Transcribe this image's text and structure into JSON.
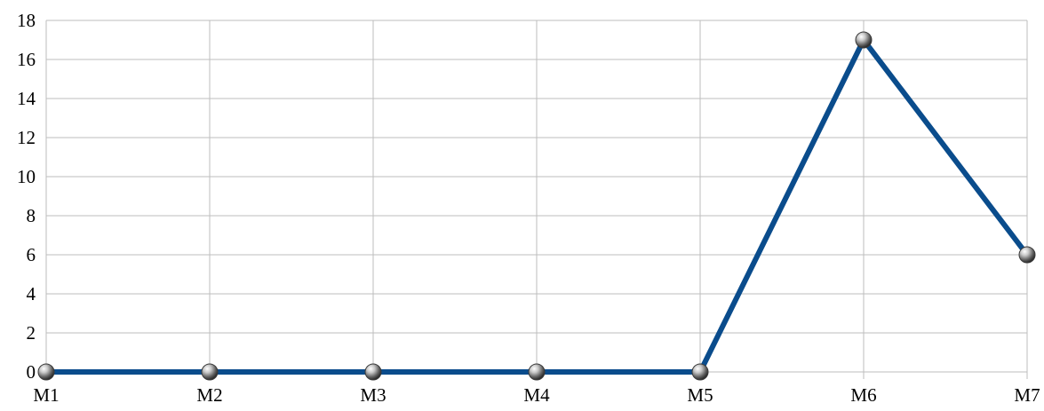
{
  "chart_data": {
    "type": "line",
    "categories": [
      "M1",
      "M2",
      "M3",
      "M4",
      "M5",
      "M6",
      "M7"
    ],
    "series": [
      {
        "values": [
          0,
          0,
          0,
          0,
          0,
          17,
          6
        ]
      }
    ],
    "ylim": [
      0,
      18
    ],
    "y_ticks": [
      0,
      2,
      4,
      6,
      8,
      10,
      12,
      14,
      16,
      18
    ],
    "y_tick_labels": [
      "0",
      "2",
      "4",
      "6",
      "8",
      "10",
      "12",
      "14",
      "16",
      "18"
    ],
    "grid": true,
    "legend": "none",
    "colors": {
      "line": "#0a4c8c",
      "grid": "#bdbdbd",
      "marker": "#8a8a8a"
    }
  }
}
